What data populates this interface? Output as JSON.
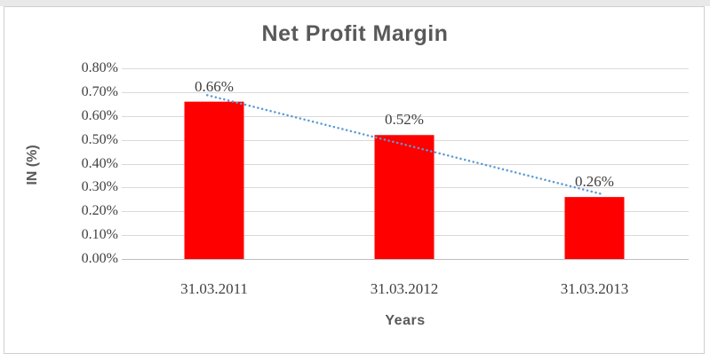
{
  "chart_data": {
    "type": "bar",
    "title": "Net Profit Margin",
    "xlabel": "Years",
    "ylabel": "IN (%)",
    "categories": [
      "31.03.2011",
      "31.03.2012",
      "31.03.2013"
    ],
    "values": [
      0.66,
      0.52,
      0.26
    ],
    "data_labels": [
      "0.66%",
      "0.52%",
      "0.26%"
    ],
    "ylim": [
      0,
      0.8
    ],
    "ytick_step": 0.1,
    "ytick_labels": [
      "0.00%",
      "0.10%",
      "0.20%",
      "0.30%",
      "0.40%",
      "0.50%",
      "0.60%",
      "0.70%",
      "0.80%"
    ],
    "grid": true,
    "legend": "none",
    "trendline": {
      "type": "linear",
      "style": "dotted",
      "fit_values": [
        0.68,
        0.48,
        0.28
      ]
    },
    "colors": {
      "bar": "#ff0000",
      "trendline": "#5b9bd5",
      "gridline": "#d9d9d9",
      "axis_line": "#bfbfbf",
      "frame_border": "#cfcfcf",
      "title_text": "#595959",
      "tick_text": "#404040",
      "top_strip": "#e9e9e9"
    }
  }
}
